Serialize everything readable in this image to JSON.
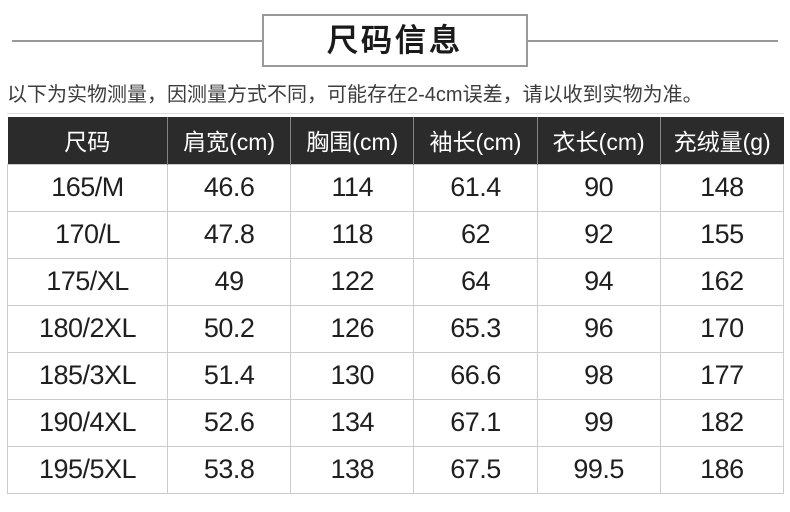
{
  "title": "尺码信息",
  "note": "以下为实物测量，因测量方式不同，可能存在2-4cm误差，请以收到实物为准。",
  "table": {
    "headers": [
      "尺码",
      "肩宽(cm)",
      "胸围(cm)",
      "袖长(cm)",
      "衣长(cm)",
      "充绒量(g)"
    ],
    "rows": [
      [
        "165/M",
        "46.6",
        "114",
        "61.4",
        "90",
        "148"
      ],
      [
        "170/L",
        "47.8",
        "118",
        "62",
        "92",
        "155"
      ],
      [
        "175/XL",
        "49",
        "122",
        "64",
        "94",
        "162"
      ],
      [
        "180/2XL",
        "50.2",
        "126",
        "65.3",
        "96",
        "170"
      ],
      [
        "185/3XL",
        "51.4",
        "130",
        "66.6",
        "98",
        "177"
      ],
      [
        "190/4XL",
        "52.6",
        "134",
        "67.1",
        "99",
        "182"
      ],
      [
        "195/5XL",
        "53.8",
        "138",
        "67.5",
        "99.5",
        "186"
      ]
    ]
  },
  "colors": {
    "header_bg": "#2b2b2b",
    "header_text": "#ffffff",
    "header_divider": "#848484",
    "body_border": "#cccccc",
    "title_border_line": "#999999",
    "body_text": "#1f1f1f",
    "note_text": "#3d3d3d"
  }
}
